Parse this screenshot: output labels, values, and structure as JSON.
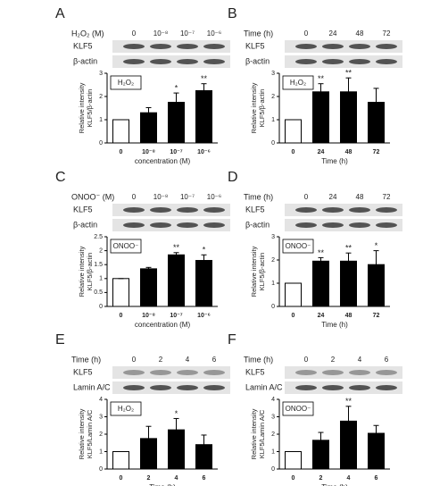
{
  "chart_data": [
    {
      "type": "bar",
      "letter": "A",
      "treatment_label": "H₂O₂ (M)",
      "lanes": [
        "0",
        "10⁻⁸",
        "10⁻⁷",
        "10⁻⁶"
      ],
      "blot_rows": [
        "KLF5",
        "β-actin"
      ],
      "inset_label": "H₂O₂",
      "y_label": [
        "Relative intensity",
        "KLF5/β-actin"
      ],
      "x_label": "concentration (M)",
      "categories": [
        "0",
        "10⁻⁸",
        "10⁻⁷",
        "10⁻⁶"
      ],
      "values": [
        1,
        1.3,
        1.75,
        2.25
      ],
      "errors": [
        0,
        0.22,
        0.4,
        0.3
      ],
      "significance": [
        null,
        null,
        "*",
        "**"
      ],
      "bar_colors": [
        "#ffffff",
        "#000000",
        "#000000",
        "#000000"
      ],
      "ylim": [
        0,
        3
      ],
      "yticks": [
        0,
        1,
        2,
        3
      ]
    },
    {
      "type": "bar",
      "letter": "B",
      "treatment_label": "Time (h)",
      "lanes": [
        "0",
        "24",
        "48",
        "72"
      ],
      "blot_rows": [
        "KLF5",
        "β-actin"
      ],
      "inset_label": "H₂O₂",
      "y_label": [
        "Relative intensity",
        "KLF5/β-actin"
      ],
      "x_label": "Time (h)",
      "categories": [
        "0",
        "24",
        "48",
        "72"
      ],
      "values": [
        1,
        2.2,
        2.2,
        1.75
      ],
      "errors": [
        0,
        0.35,
        0.6,
        0.6
      ],
      "significance": [
        null,
        "**",
        "**",
        null
      ],
      "bar_colors": [
        "#ffffff",
        "#000000",
        "#000000",
        "#000000"
      ],
      "ylim": [
        0,
        3
      ],
      "yticks": [
        0,
        1,
        2,
        3
      ]
    },
    {
      "type": "bar",
      "letter": "C",
      "treatment_label": "ONOO⁻ (M)",
      "lanes": [
        "0",
        "10⁻⁸",
        "10⁻⁷",
        "10⁻⁶"
      ],
      "blot_rows": [
        "KLF5",
        "β-actin"
      ],
      "inset_label": "ONOO⁻",
      "y_label": [
        "Relative intensity",
        "KLF5/β-actin"
      ],
      "x_label": "concentration (M)",
      "categories": [
        "0",
        "10⁻⁸",
        "10⁻⁷",
        "10⁻⁶"
      ],
      "values": [
        1,
        1.35,
        1.85,
        1.65
      ],
      "errors": [
        0,
        0.05,
        0.08,
        0.2
      ],
      "significance": [
        null,
        null,
        "**",
        "*"
      ],
      "bar_colors": [
        "#ffffff",
        "#000000",
        "#000000",
        "#000000"
      ],
      "ylim": [
        0,
        2.5
      ],
      "yticks": [
        0,
        0.5,
        1,
        1.5,
        2,
        2.5
      ]
    },
    {
      "type": "bar",
      "letter": "D",
      "treatment_label": "Time (h)",
      "lanes": [
        "0",
        "24",
        "48",
        "72"
      ],
      "blot_rows": [
        "KLF5",
        "β-actin"
      ],
      "inset_label": "ONOO⁻",
      "y_label": [
        "Relative intensity",
        "KLF5/β-actin"
      ],
      "x_label": "Time (h)",
      "categories": [
        "0",
        "24",
        "48",
        "72"
      ],
      "values": [
        1,
        1.95,
        1.95,
        1.8
      ],
      "errors": [
        0,
        0.15,
        0.35,
        0.6
      ],
      "significance": [
        null,
        "**",
        "**",
        "*"
      ],
      "bar_colors": [
        "#ffffff",
        "#000000",
        "#000000",
        "#000000"
      ],
      "ylim": [
        0,
        3
      ],
      "yticks": [
        0,
        1,
        2,
        3
      ]
    },
    {
      "type": "bar",
      "letter": "E",
      "treatment_label": "Time (h)",
      "lanes": [
        "0",
        "2",
        "4",
        "6"
      ],
      "blot_rows": [
        "KLF5",
        "Lamin A/C"
      ],
      "inset_label": "H₂O₂",
      "y_label": [
        "Relative intensity",
        "KLF5/Lamin A/C"
      ],
      "x_label": "Time (h)",
      "categories": [
        "0",
        "2",
        "4",
        "6"
      ],
      "values": [
        1,
        1.75,
        2.25,
        1.4
      ],
      "errors": [
        0,
        0.7,
        0.65,
        0.55
      ],
      "significance": [
        null,
        null,
        "*",
        null
      ],
      "bar_colors": [
        "#ffffff",
        "#000000",
        "#000000",
        "#000000"
      ],
      "ylim": [
        0,
        4
      ],
      "yticks": [
        0,
        1,
        2,
        3,
        4
      ]
    },
    {
      "type": "bar",
      "letter": "F",
      "treatment_label": "Time (h)",
      "lanes": [
        "0",
        "2",
        "4",
        "6"
      ],
      "blot_rows": [
        "KLF5",
        "Lamin A/C"
      ],
      "inset_label": "ONOO⁻",
      "y_label": [
        "Relative intensity",
        "KLF5/Lamin A/C"
      ],
      "x_label": "Time (h)",
      "categories": [
        "0",
        "2",
        "4",
        "6"
      ],
      "values": [
        1,
        1.65,
        2.75,
        2.05
      ],
      "errors": [
        0,
        0.45,
        0.85,
        0.45
      ],
      "significance": [
        null,
        null,
        "**",
        null
      ],
      "bar_colors": [
        "#ffffff",
        "#000000",
        "#000000",
        "#000000"
      ],
      "ylim": [
        0,
        4
      ],
      "yticks": [
        0,
        1,
        2,
        3,
        4
      ]
    }
  ]
}
